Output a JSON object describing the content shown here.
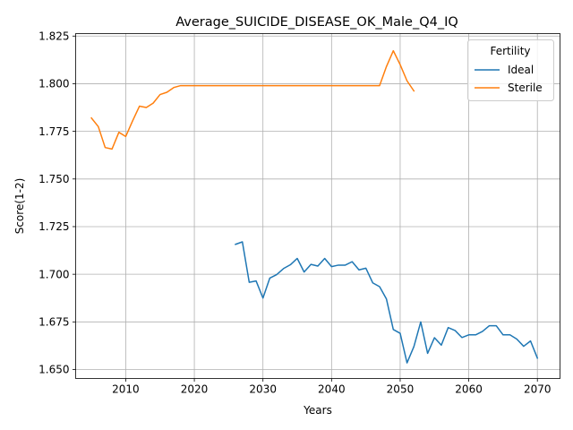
{
  "chart_data": {
    "type": "line",
    "title": "Average_SUICIDE_DISEASE_OK_Male_Q4_IQ",
    "xlabel": "Years",
    "ylabel": "Score(1-2)",
    "xlim": [
      2002.7,
      2073.3
    ],
    "ylim": [
      1.6453,
      1.8263
    ],
    "x_ticks": [
      2010,
      2020,
      2030,
      2040,
      2050,
      2060,
      2070
    ],
    "x_tick_labels": [
      "2010",
      "2020",
      "2030",
      "2040",
      "2050",
      "2060",
      "2070"
    ],
    "y_ticks": [
      1.65,
      1.675,
      1.7,
      1.725,
      1.75,
      1.775,
      1.8,
      1.825
    ],
    "y_tick_labels": [
      "1.650",
      "1.675",
      "1.700",
      "1.725",
      "1.750",
      "1.775",
      "1.800",
      "1.825"
    ],
    "grid": true,
    "legend": {
      "title": "Fertility",
      "placement": "top-right"
    },
    "series": [
      {
        "name": "Ideal",
        "color": "#1f77b4",
        "x": [
          2026,
          2027,
          2028,
          2029,
          2030,
          2031,
          2032,
          2033,
          2034,
          2035,
          2036,
          2037,
          2038,
          2039,
          2040,
          2041,
          2042,
          2043,
          2044,
          2045,
          2046,
          2047,
          2048,
          2049,
          2050,
          2051,
          2052,
          2053,
          2054,
          2055,
          2056,
          2057,
          2058,
          2059,
          2060,
          2061,
          2062,
          2063,
          2064,
          2065,
          2066,
          2067,
          2068,
          2069,
          2070
        ],
        "values": [
          1.7157,
          1.717,
          1.6958,
          1.6965,
          1.6875,
          1.698,
          1.6998,
          1.703,
          1.705,
          1.7083,
          1.7012,
          1.7052,
          1.7043,
          1.7083,
          1.704,
          1.7048,
          1.7048,
          1.7066,
          1.7023,
          1.7032,
          1.6955,
          1.6935,
          1.687,
          1.671,
          1.669,
          1.6535,
          1.662,
          1.675,
          1.6585,
          1.6667,
          1.6628,
          1.672,
          1.6705,
          1.6668,
          1.6682,
          1.6682,
          1.67,
          1.673,
          1.673,
          1.6682,
          1.6682,
          1.666,
          1.6622,
          1.665,
          1.656
        ]
      },
      {
        "name": "Sterile",
        "color": "#ff7f0e",
        "x": [
          2005,
          2006,
          2007,
          2008,
          2009,
          2010,
          2011,
          2012,
          2013,
          2014,
          2015,
          2016,
          2017,
          2018,
          2019,
          2020,
          2021,
          2022,
          2023,
          2024,
          2025,
          2026,
          2027,
          2028,
          2029,
          2030,
          2031,
          2032,
          2033,
          2034,
          2035,
          2036,
          2037,
          2038,
          2039,
          2040,
          2041,
          2042,
          2043,
          2044,
          2045,
          2046,
          2047,
          2048,
          2049,
          2050,
          2051,
          2052
        ],
        "values": [
          1.782,
          1.7775,
          1.7665,
          1.7657,
          1.7745,
          1.7723,
          1.7805,
          1.7882,
          1.7875,
          1.7898,
          1.7943,
          1.7955,
          1.798,
          1.799,
          1.799,
          1.799,
          1.799,
          1.799,
          1.799,
          1.799,
          1.799,
          1.799,
          1.799,
          1.799,
          1.799,
          1.799,
          1.799,
          1.799,
          1.799,
          1.799,
          1.799,
          1.799,
          1.799,
          1.799,
          1.799,
          1.799,
          1.799,
          1.799,
          1.799,
          1.799,
          1.799,
          1.799,
          1.799,
          1.809,
          1.8173,
          1.81,
          1.8015,
          1.7962
        ]
      }
    ]
  }
}
